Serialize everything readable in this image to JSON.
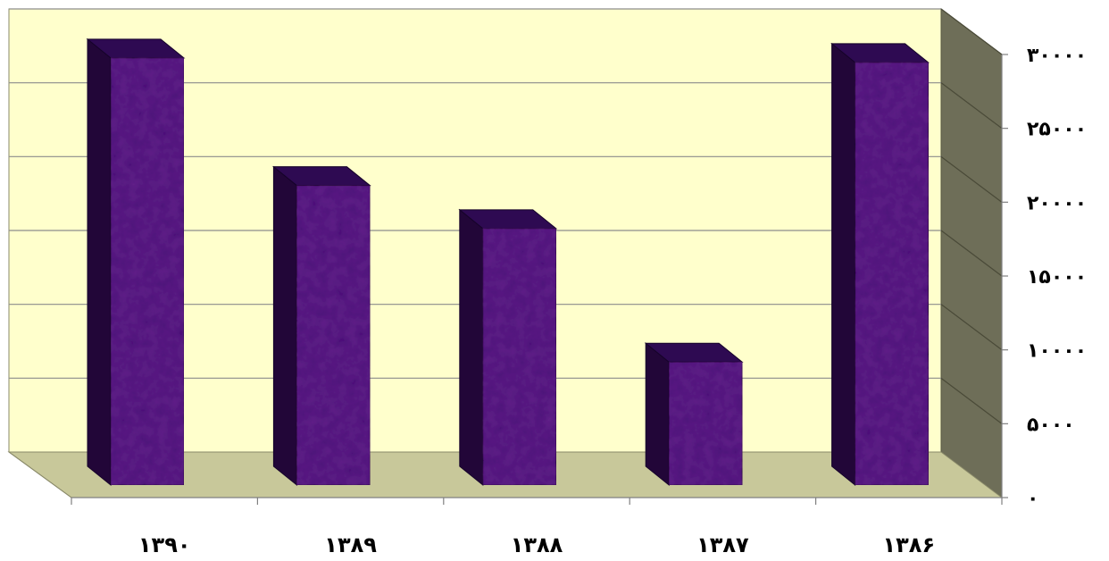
{
  "chart_data": {
    "type": "bar",
    "categories": [
      "۱۳۹۰",
      "۱۳۸۹",
      "۱۳۸۸",
      "۱۳۸۷",
      "۱۳۸۶"
    ],
    "values": [
      28800,
      20200,
      17300,
      8300,
      28500
    ],
    "ylim": [
      0,
      30000
    ],
    "yticks": [
      0,
      5000,
      10000,
      15000,
      20000,
      25000,
      30000
    ],
    "ytick_labels": [
      "۰",
      "۵۰۰۰",
      "۱۰۰۰۰",
      "۱۵۰۰۰",
      "۲۰۰۰۰",
      "۲۵۰۰۰",
      "۳۰۰۰۰"
    ],
    "y_axis_side": "right",
    "grid": true,
    "legend": "none",
    "colors": {
      "back_wall": "#FFFFCC",
      "side_wall": "#6E6E58",
      "floor": "#C8C89A",
      "bar_front": "#4B1478",
      "bar_top": "#2E0A52",
      "bar_side": "#220638",
      "grid_line": "#8C8C8C"
    }
  }
}
